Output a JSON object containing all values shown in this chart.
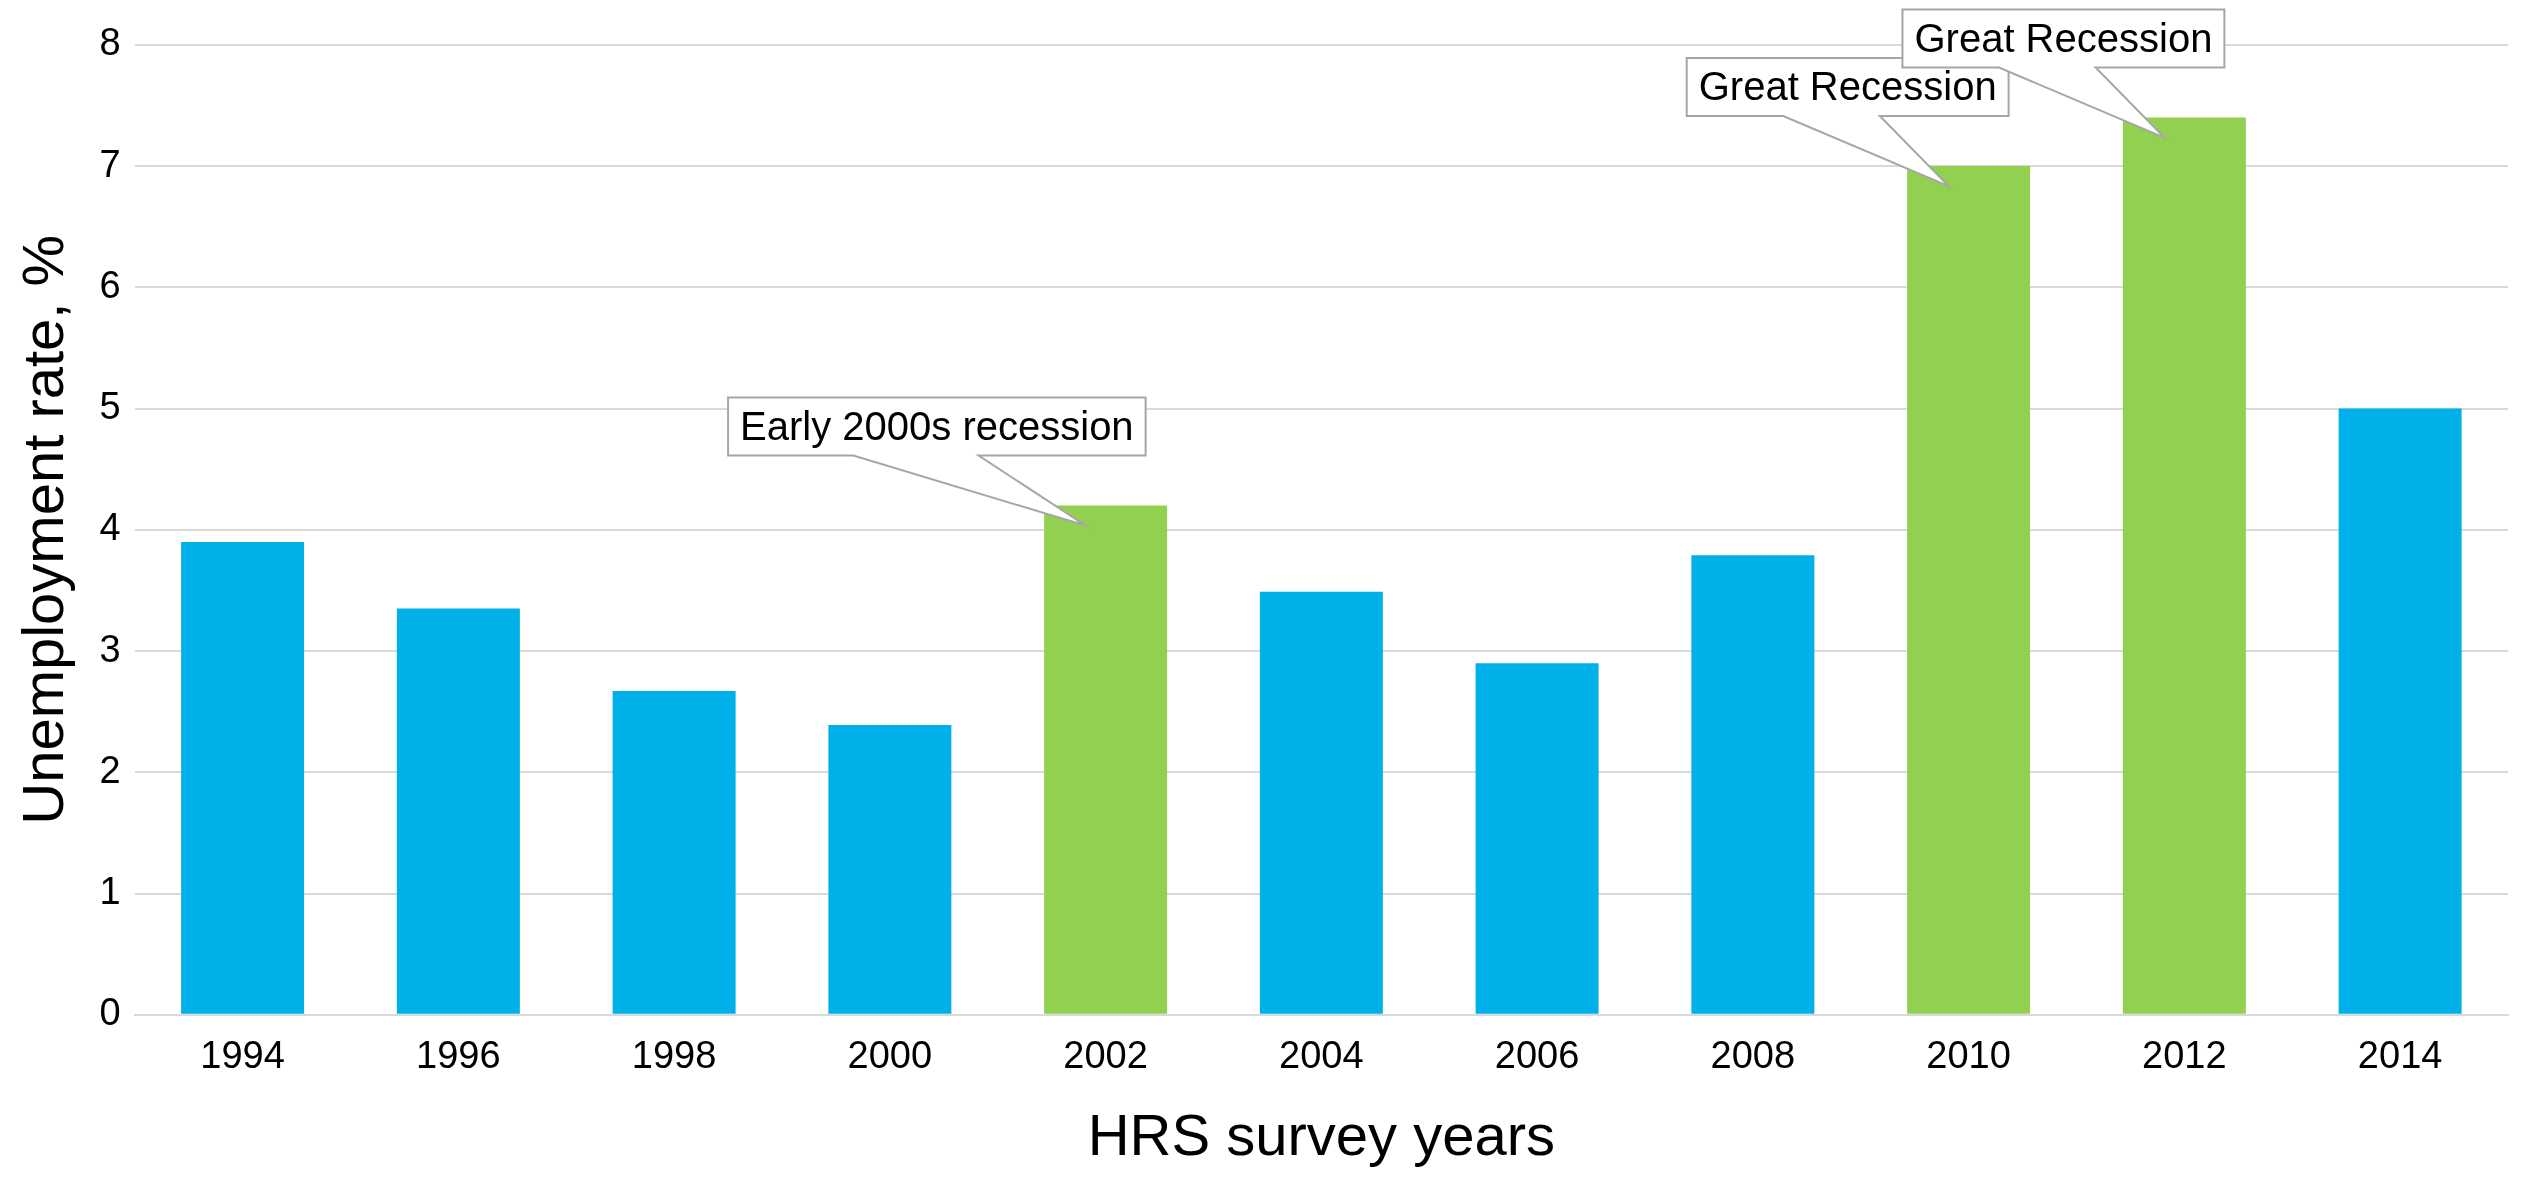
{
  "chart_data": {
    "type": "bar",
    "xlabel": "HRS survey years",
    "ylabel": "Unemployment rate, %",
    "categories": [
      "1994",
      "1996",
      "1998",
      "2000",
      "2002",
      "2004",
      "2006",
      "2008",
      "2010",
      "2012",
      "2014"
    ],
    "values": [
      3.9,
      3.35,
      2.67,
      2.39,
      4.2,
      3.49,
      2.9,
      3.79,
      7.0,
      7.4,
      5.0
    ],
    "colors": [
      "#00b0e8",
      "#00b0e8",
      "#00b0e8",
      "#00b0e8",
      "#92d050",
      "#00b0e8",
      "#00b0e8",
      "#00b0e8",
      "#92d050",
      "#92d050",
      "#00b0e8"
    ],
    "ylim": [
      0,
      8
    ],
    "yticks": [
      0,
      1,
      2,
      3,
      4,
      5,
      6,
      7,
      8
    ],
    "grid": "y",
    "legend": false,
    "annotations": [
      {
        "text": "Early 2000s recession",
        "x": "2002",
        "y": 4.2
      },
      {
        "text": "Great Recession",
        "x": "2010",
        "y": 7.0
      },
      {
        "text": "Great Recession",
        "x": "2012",
        "y": 7.4
      }
    ]
  }
}
